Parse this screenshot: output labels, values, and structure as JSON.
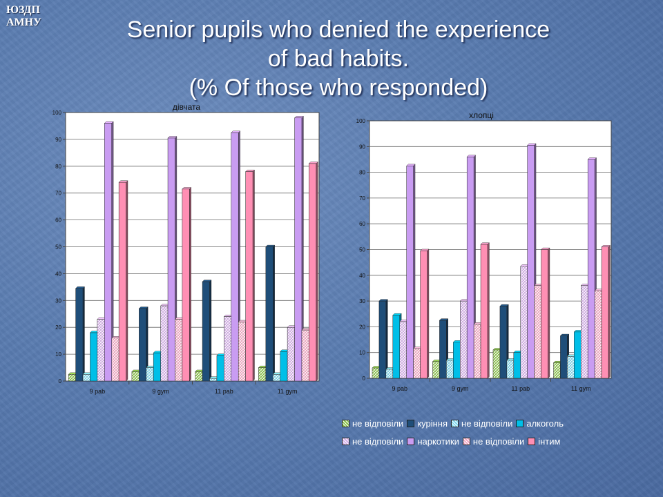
{
  "header": {
    "logo_line1": "ЮЗДП",
    "logo_line2": "АМНУ",
    "title_line1": "Senior pupils who denied the experience",
    "title_line2": "of bad habits.",
    "title_line3": "(% Of those who responded)"
  },
  "legend": {
    "items": [
      {
        "label": "не відповіли",
        "color": "#8bc34a",
        "pattern": "hatch"
      },
      {
        "label": "куріння",
        "color": "#1f4e79",
        "pattern": "solid"
      },
      {
        "label": "не відповіли",
        "color": "#7fd8ee",
        "pattern": "hatch"
      },
      {
        "label": "алкоголь",
        "color": "#00bfe8",
        "pattern": "solid"
      },
      {
        "label": "не відповіли",
        "color": "#d6b0ea",
        "pattern": "hatch"
      },
      {
        "label": "наркотики",
        "color": "#c99cf2",
        "pattern": "solid"
      },
      {
        "label": "не відповіли",
        "color": "#f4a9c4",
        "pattern": "hatch"
      },
      {
        "label": "інтим",
        "color": "#ff8fb4",
        "pattern": "solid"
      }
    ]
  },
  "chart_data": [
    {
      "type": "bar",
      "title": "дівчата",
      "categories": [
        "9 pab",
        "9 gym",
        "11 pab",
        "11 gym"
      ],
      "ylim": [
        0,
        100
      ],
      "yticks": [
        0,
        10,
        20,
        30,
        40,
        50,
        60,
        70,
        80,
        90,
        100
      ],
      "grid": true,
      "series": [
        {
          "name": "не відповіли",
          "values": [
            2.5,
            3.5,
            3.5,
            5
          ]
        },
        {
          "name": "куріння",
          "values": [
            34.5,
            27,
            37,
            50
          ]
        },
        {
          "name": "не відповіли",
          "values": [
            2.5,
            5,
            1,
            2.5
          ]
        },
        {
          "name": "алкоголь",
          "values": [
            18,
            10.5,
            9.5,
            11
          ]
        },
        {
          "name": "не відповіли",
          "values": [
            23,
            28,
            24,
            20
          ]
        },
        {
          "name": "наркотики",
          "values": [
            96,
            90.5,
            92.5,
            98
          ]
        },
        {
          "name": "не відповіли",
          "values": [
            16,
            23,
            22,
            19
          ]
        },
        {
          "name": "інтим",
          "values": [
            74,
            71.5,
            78,
            81
          ]
        }
      ]
    },
    {
      "type": "bar",
      "title": "хлопці",
      "categories": [
        "9 pab",
        "9 gym",
        "11 pab",
        "11 gym"
      ],
      "ylim": [
        0,
        100
      ],
      "yticks": [
        0,
        10,
        20,
        30,
        40,
        50,
        60,
        70,
        80,
        90,
        100
      ],
      "grid": true,
      "series": [
        {
          "name": "не відповіли",
          "values": [
            4,
            6.5,
            11,
            6
          ]
        },
        {
          "name": "куріння",
          "values": [
            30,
            22.5,
            28,
            16.5
          ]
        },
        {
          "name": "не відповіли",
          "values": [
            3.5,
            7,
            7,
            8.5
          ]
        },
        {
          "name": "алкоголь",
          "values": [
            24.5,
            14,
            10,
            18
          ]
        },
        {
          "name": "не відповіли",
          "values": [
            22,
            30,
            43.5,
            36
          ]
        },
        {
          "name": "наркотики",
          "values": [
            82.5,
            86,
            90.5,
            85
          ]
        },
        {
          "name": "не відповіли",
          "values": [
            11.5,
            21,
            36,
            34
          ]
        },
        {
          "name": "інтим",
          "values": [
            49.5,
            52,
            50,
            51
          ]
        }
      ]
    }
  ]
}
